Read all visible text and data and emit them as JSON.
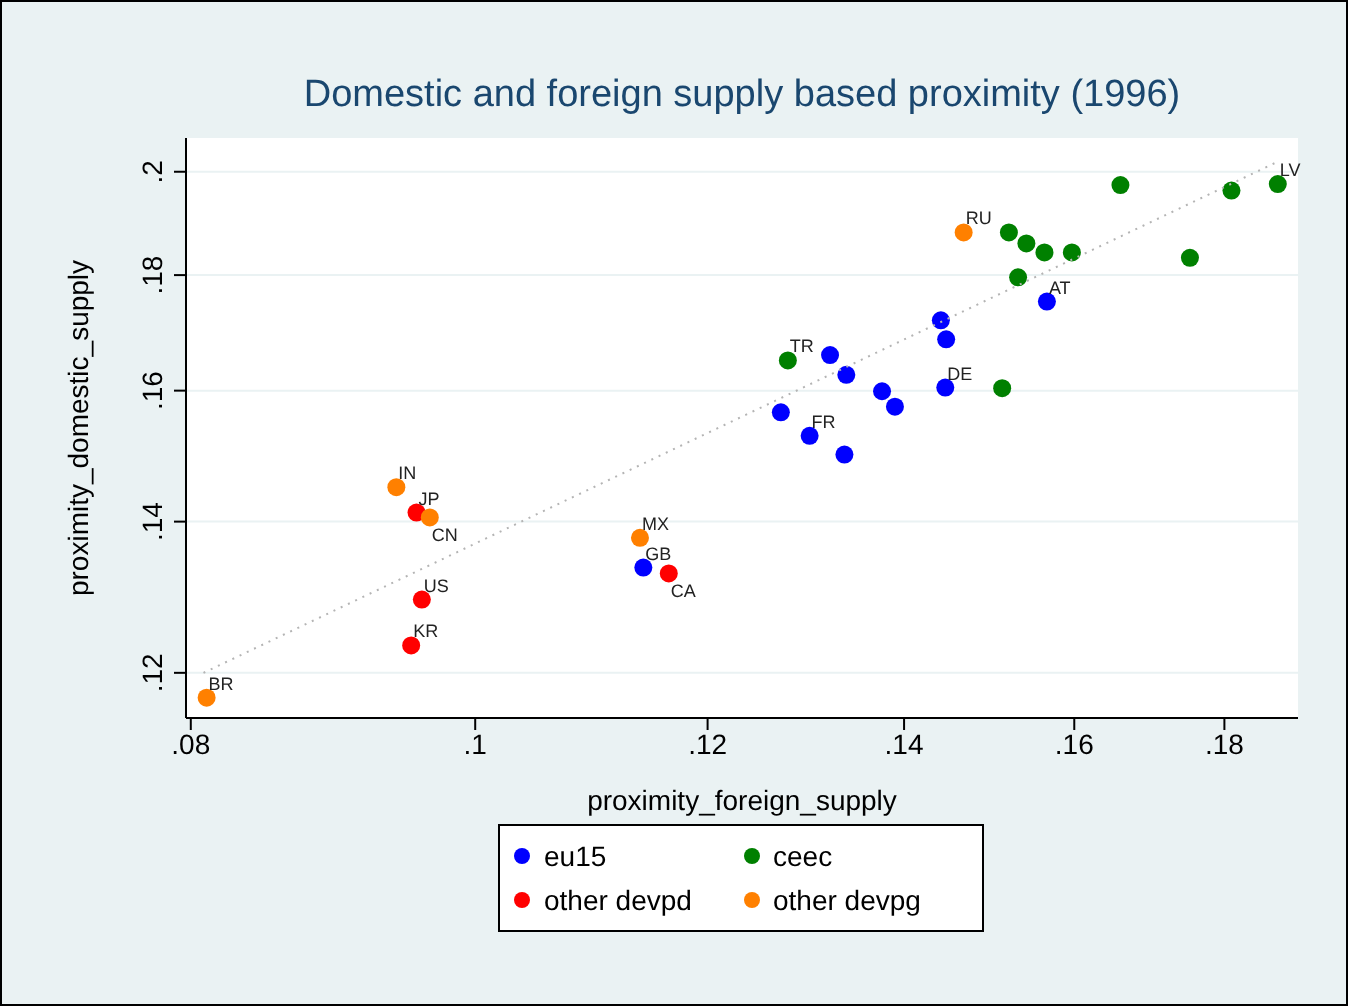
{
  "chart_data": {
    "type": "scatter",
    "title": "Domestic and foreign supply based proximity (1996)",
    "xlabel": "proximity_foreign_supply",
    "ylabel": "proximity_domestic_supply",
    "log": "xy",
    "xlim": [
      0.0797,
      0.1907
    ],
    "ylim": [
      0.1146,
      0.207
    ],
    "xticks": [
      {
        "value": 0.08,
        "label": ".08"
      },
      {
        "value": 0.1,
        "label": ".1"
      },
      {
        "value": 0.12,
        "label": ".12"
      },
      {
        "value": 0.14,
        "label": ".14"
      },
      {
        "value": 0.16,
        "label": ".16"
      },
      {
        "value": 0.18,
        "label": ".18"
      }
    ],
    "yticks": [
      {
        "value": 0.12,
        "label": ".12"
      },
      {
        "value": 0.14,
        "label": ".14"
      },
      {
        "value": 0.16,
        "label": ".16"
      },
      {
        "value": 0.18,
        "label": ".18"
      },
      {
        "value": 0.2,
        "label": ".2"
      }
    ],
    "grid": "y",
    "legend": "bottom",
    "marker": "circle",
    "series": [
      {
        "name": "eu15",
        "color": "#0000ff",
        "x": [
          0.1141,
          0.1271,
          0.13,
          0.1321,
          0.1338,
          0.1336,
          0.1376,
          0.139,
          0.1441,
          0.1447,
          0.1446,
          0.1566
        ],
        "values": [
          0.1336,
          0.1565,
          0.1528,
          0.1659,
          0.1626,
          0.1499,
          0.1599,
          0.1574,
          0.1719,
          0.1686,
          0.1605,
          0.1752
        ]
      },
      {
        "name": "ceec",
        "color": "#008000",
        "x": [
          0.1278,
          0.1512,
          0.152,
          0.1541,
          0.1563,
          0.1597,
          0.1531,
          0.1659,
          0.181,
          0.1877,
          0.1752
        ],
        "values": [
          0.165,
          0.1604,
          0.188,
          0.1859,
          0.1842,
          0.1842,
          0.1796,
          0.1973,
          0.1962,
          0.1975,
          0.1832
        ]
      },
      {
        "name": "other devpd",
        "color": "#ff0000",
        "x": [
          0.0955,
          0.0959,
          0.0951,
          0.1164
        ],
        "values": [
          0.1413,
          0.1293,
          0.1234,
          0.1328
        ]
      },
      {
        "name": "other devpg",
        "color": "#ff8000",
        "x": [
          0.081,
          0.094,
          0.0965,
          0.1138,
          0.1467
        ],
        "values": [
          0.117,
          0.145,
          0.1406,
          0.1377,
          0.188
        ]
      },
      {
        "type": "line",
        "color": "#b4b4b4",
        "line_style": "dotted",
        "marker": "none",
        "x": [
          0.0808,
          0.1879
        ],
        "values": [
          0.12,
          0.2022
        ]
      }
    ],
    "annotations": [
      {
        "text": "BR",
        "x": 0.081,
        "y": 0.117
      },
      {
        "text": "IN",
        "x": 0.094,
        "y": 0.145
      },
      {
        "text": "JP",
        "x": 0.0955,
        "y": 0.1413
      },
      {
        "text": "CN",
        "x": 0.0965,
        "y": 0.1406
      },
      {
        "text": "US",
        "x": 0.0959,
        "y": 0.1293
      },
      {
        "text": "KR",
        "x": 0.0951,
        "y": 0.1234
      },
      {
        "text": "MX",
        "x": 0.1138,
        "y": 0.1377
      },
      {
        "text": "GB",
        "x": 0.1141,
        "y": 0.1336
      },
      {
        "text": "CA",
        "x": 0.1164,
        "y": 0.1328
      },
      {
        "text": "TR",
        "x": 0.1278,
        "y": 0.165
      },
      {
        "text": "FR",
        "x": 0.13,
        "y": 0.1528
      },
      {
        "text": "DE",
        "x": 0.1446,
        "y": 0.1605
      },
      {
        "text": "RU",
        "x": 0.1467,
        "y": 0.188
      },
      {
        "text": "AT",
        "x": 0.1566,
        "y": 0.1752
      },
      {
        "text": "LV",
        "x": 0.1877,
        "y": 0.1975
      }
    ]
  }
}
